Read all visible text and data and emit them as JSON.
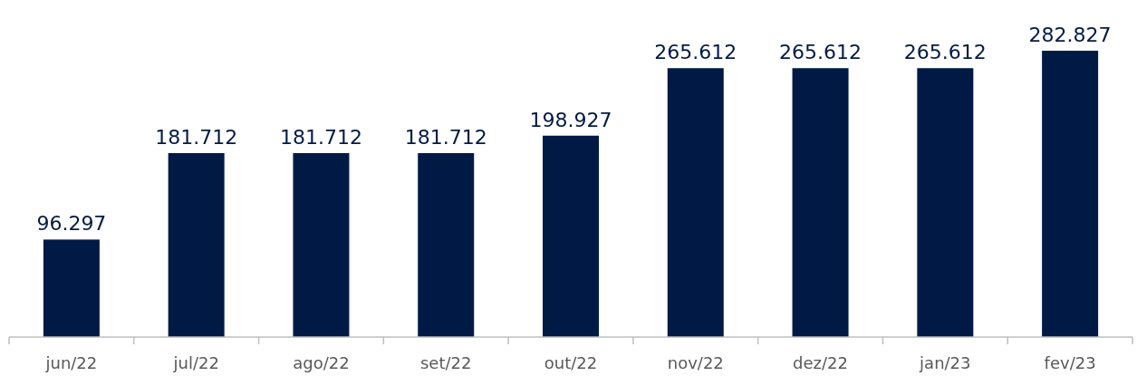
{
  "chart_data": {
    "type": "bar",
    "categories": [
      "jun/22",
      "jul/22",
      "ago/22",
      "set/22",
      "out/22",
      "nov/22",
      "dez/22",
      "jan/23",
      "fev/23"
    ],
    "values": [
      96297,
      181712,
      181712,
      181712,
      198927,
      265612,
      265612,
      265612,
      282827
    ],
    "value_labels": [
      "96.297",
      "181.712",
      "181.712",
      "181.712",
      "198.927",
      "265.612",
      "265.612",
      "265.612",
      "282.827"
    ],
    "color": "#001a45"
  }
}
